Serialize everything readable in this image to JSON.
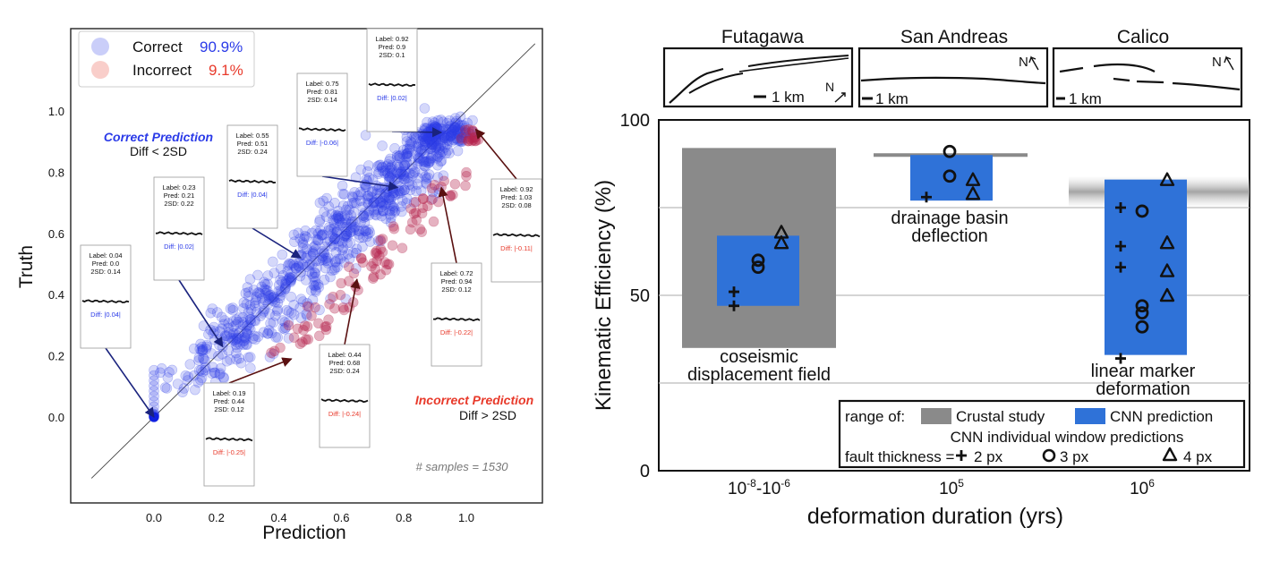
{
  "chart_data": [
    {
      "type": "scatter",
      "xlabel": "Prediction",
      "ylabel": "Truth",
      "xlim": [
        -0.28,
        1.3
      ],
      "ylim": [
        -0.2,
        1.22
      ],
      "xticks": [
        "0.0",
        "0.2",
        "0.4",
        "0.6",
        "0.8",
        "1.0"
      ],
      "yticks": [
        "0.0",
        "0.2",
        "0.4",
        "0.6",
        "0.8",
        "1.0"
      ],
      "legend": [
        {
          "label": "Correct",
          "pct": "90.9%",
          "color": "#2b3be8"
        },
        {
          "label": "Incorrect",
          "pct": "9.1%",
          "color": "#e83a2b"
        }
      ],
      "annotations": {
        "correct_title": "Correct Prediction",
        "correct_rule": "Diff < 2SD",
        "incorrect_title": "Incorrect Prediction",
        "incorrect_rule": "Diff > 2SD",
        "samples": "# samples = 1530"
      },
      "insets": [
        {
          "label": "Label: 0.04",
          "pred": "Pred: 0.0",
          "sd": "2SD: 0.14",
          "diff": "Diff: |0.04|",
          "correct": true,
          "target": [
            0.0,
            0.0
          ]
        },
        {
          "label": "Label: 0.23",
          "pred": "Pred: 0.21",
          "sd": "2SD: 0.22",
          "diff": "Diff: |0.02|",
          "correct": true,
          "target": [
            0.22,
            0.23
          ]
        },
        {
          "label": "Label: 0.19",
          "pred": "Pred: 0.44",
          "sd": "2SD: 0.12",
          "diff": "Diff: |-0.25|",
          "correct": false,
          "target": [
            0.44,
            0.19
          ]
        },
        {
          "label": "Label: 0.55",
          "pred": "Pred: 0.51",
          "sd": "2SD: 0.24",
          "diff": "Diff: |0.04|",
          "correct": true,
          "target": [
            0.47,
            0.52
          ]
        },
        {
          "label": "Label: 0.75",
          "pred": "Pred: 0.81",
          "sd": "2SD: 0.14",
          "diff": "Diff: |-0.06|",
          "correct": true,
          "target": [
            0.78,
            0.75
          ]
        },
        {
          "label": "Label: 0.44",
          "pred": "Pred: 0.68",
          "sd": "2SD: 0.24",
          "diff": "Diff: |-0.24|",
          "correct": false,
          "target": [
            0.65,
            0.45
          ]
        },
        {
          "label": "Label: 0.92",
          "pred": "Pred: 0.9",
          "sd": "2SD: 0.1",
          "diff": "Diff: |0.02|",
          "correct": true,
          "target": [
            0.92,
            0.93
          ]
        },
        {
          "label": "Label: 0.72",
          "pred": "Pred: 0.94",
          "sd": "2SD: 0.12",
          "diff": "Diff: |-0.22|",
          "correct": false,
          "target": [
            0.92,
            0.75
          ]
        },
        {
          "label": "Label: 0.92",
          "pred": "Pred: 1.03",
          "sd": "2SD: 0.08",
          "diff": "Diff: |-0.11|",
          "correct": false,
          "target": [
            1.03,
            0.94
          ]
        }
      ]
    },
    {
      "type": "bar",
      "ylabel": "Kinematic Efficiency (%)",
      "xlabel": "deformation duration (yrs)",
      "ylim": [
        0,
        100
      ],
      "yticks": [
        "0",
        "50",
        "100"
      ],
      "gridlines": [
        25,
        50,
        75
      ],
      "categories": [
        {
          "sup": true,
          "base1": "10",
          "exp1": "-8",
          "mid": "-",
          "base2": "10",
          "exp2": "-6"
        },
        {
          "sup": true,
          "base1": "10",
          "exp1": "5"
        },
        {
          "sup": true,
          "base1": "10",
          "exp1": "6"
        }
      ],
      "fault_panels": [
        {
          "name": "Futagawa",
          "scale": "1 km",
          "north": "N"
        },
        {
          "name": "San Andreas",
          "scale": "1 km",
          "north": "N"
        },
        {
          "name": "Calico",
          "scale": "1 km",
          "north": "N"
        }
      ],
      "crustal_study": [
        {
          "low": 35,
          "high": 92
        },
        {
          "low": 90,
          "high": 90
        },
        {
          "low": 75,
          "high": 84
        }
      ],
      "cnn_prediction": [
        {
          "low": 47,
          "high": 67
        },
        {
          "low": 77,
          "high": 90
        },
        {
          "low": 33,
          "high": 83
        }
      ],
      "windows": {
        "2px": [
          [
            51,
            47
          ],
          [
            78
          ],
          [
            75,
            64,
            58,
            32
          ]
        ],
        "3px": [
          [
            60,
            58
          ],
          [
            91,
            84
          ],
          [
            74,
            47,
            45,
            41
          ]
        ],
        "4px": [
          [
            68,
            65
          ],
          [
            83,
            79
          ],
          [
            83,
            65,
            57,
            50
          ]
        ]
      },
      "group_labels": [
        [
          "coseismic",
          "displacement field"
        ],
        [
          "drainage basin",
          "deflection"
        ],
        [
          "linear marker",
          "deformation"
        ]
      ],
      "legend": {
        "range_of": "range of:",
        "crustal": "Crustal study",
        "cnn": "CNN prediction",
        "windows_title": "CNN individual window predictions",
        "thickness": "fault thickness =",
        "px2": "2 px",
        "px3": "3 px",
        "px4": "4 px"
      },
      "colors": {
        "crustal": "#8a8a8a",
        "cnn": "#2f72d8"
      }
    }
  ]
}
